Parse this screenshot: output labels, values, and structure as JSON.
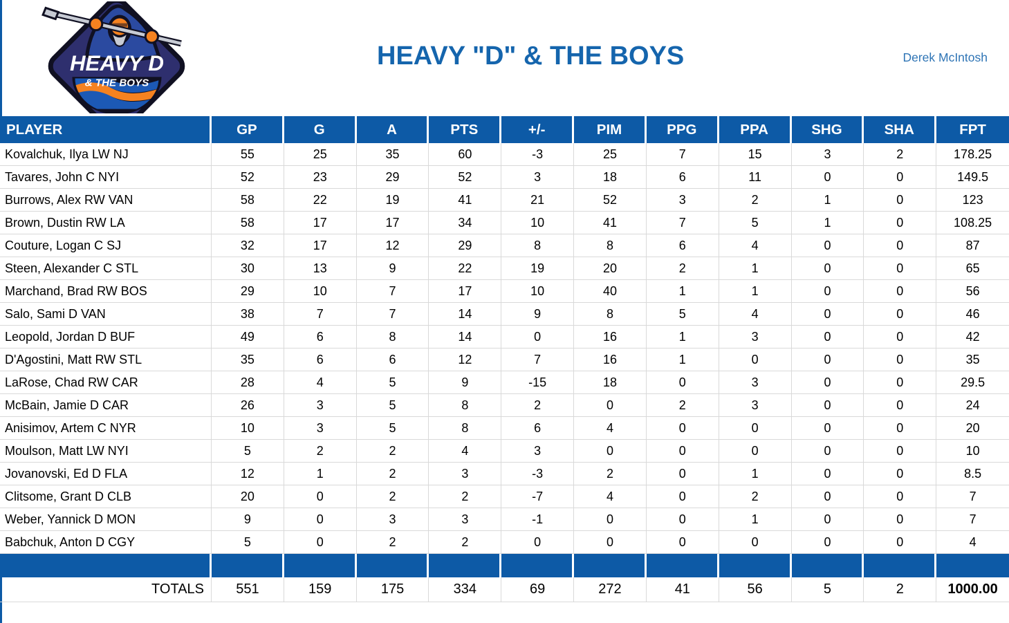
{
  "page": {
    "title": "HEAVY \"D\" & THE BOYS",
    "owner": "Derek McIntosh"
  },
  "logo": {
    "line1": "HEAVY D",
    "line2": "& THE BOYS"
  },
  "colors": {
    "header_blue": "#0d5aa6",
    "title_blue": "#1565ad",
    "owner_blue": "#2e74b5",
    "gridline": "#d9d9d9",
    "logo_navy": "#2e2f6e",
    "logo_outline": "#101022",
    "logo_robe_blue": "#2b4aa0",
    "logo_wave_blue": "#1c59b5",
    "logo_orange": "#f58220",
    "logo_gray": "#c7cbd4"
  },
  "table": {
    "columns": [
      "PLAYER",
      "GP",
      "G",
      "A",
      "PTS",
      "+/-",
      "PIM",
      "PPG",
      "PPA",
      "SHG",
      "SHA",
      "FPT"
    ],
    "rows": [
      [
        "Kovalchuk, Ilya LW NJ",
        "55",
        "25",
        "35",
        "60",
        "-3",
        "25",
        "7",
        "15",
        "3",
        "2",
        "178.25"
      ],
      [
        "Tavares, John C NYI",
        "52",
        "23",
        "29",
        "52",
        "3",
        "18",
        "6",
        "11",
        "0",
        "0",
        "149.5"
      ],
      [
        "Burrows, Alex RW VAN",
        "58",
        "22",
        "19",
        "41",
        "21",
        "52",
        "3",
        "2",
        "1",
        "0",
        "123"
      ],
      [
        "Brown, Dustin RW LA",
        "58",
        "17",
        "17",
        "34",
        "10",
        "41",
        "7",
        "5",
        "1",
        "0",
        "108.25"
      ],
      [
        "Couture, Logan C SJ",
        "32",
        "17",
        "12",
        "29",
        "8",
        "8",
        "6",
        "4",
        "0",
        "0",
        "87"
      ],
      [
        "Steen, Alexander C STL",
        "30",
        "13",
        "9",
        "22",
        "19",
        "20",
        "2",
        "1",
        "0",
        "0",
        "65"
      ],
      [
        "Marchand, Brad RW BOS",
        "29",
        "10",
        "7",
        "17",
        "10",
        "40",
        "1",
        "1",
        "0",
        "0",
        "56"
      ],
      [
        "Salo, Sami D VAN",
        "38",
        "7",
        "7",
        "14",
        "9",
        "8",
        "5",
        "4",
        "0",
        "0",
        "46"
      ],
      [
        "Leopold, Jordan D BUF",
        "49",
        "6",
        "8",
        "14",
        "0",
        "16",
        "1",
        "3",
        "0",
        "0",
        "42"
      ],
      [
        "D'Agostini, Matt RW STL",
        "35",
        "6",
        "6",
        "12",
        "7",
        "16",
        "1",
        "0",
        "0",
        "0",
        "35"
      ],
      [
        "LaRose, Chad RW CAR",
        "28",
        "4",
        "5",
        "9",
        "-15",
        "18",
        "0",
        "3",
        "0",
        "0",
        "29.5"
      ],
      [
        "McBain, Jamie D CAR",
        "26",
        "3",
        "5",
        "8",
        "2",
        "0",
        "2",
        "3",
        "0",
        "0",
        "24"
      ],
      [
        "Anisimov, Artem C NYR",
        "10",
        "3",
        "5",
        "8",
        "6",
        "4",
        "0",
        "0",
        "0",
        "0",
        "20"
      ],
      [
        "Moulson, Matt LW NYI",
        "5",
        "2",
        "2",
        "4",
        "3",
        "0",
        "0",
        "0",
        "0",
        "0",
        "10"
      ],
      [
        "Jovanovski, Ed D FLA",
        "12",
        "1",
        "2",
        "3",
        "-3",
        "2",
        "0",
        "1",
        "0",
        "0",
        "8.5"
      ],
      [
        "Clitsome, Grant D CLB",
        "20",
        "0",
        "2",
        "2",
        "-7",
        "4",
        "0",
        "2",
        "0",
        "0",
        "7"
      ],
      [
        "Weber, Yannick D MON",
        "9",
        "0",
        "3",
        "3",
        "-1",
        "0",
        "0",
        "1",
        "0",
        "0",
        "7"
      ],
      [
        "Babchuk, Anton D CGY",
        "5",
        "0",
        "2",
        "2",
        "0",
        "0",
        "0",
        "0",
        "0",
        "0",
        "4"
      ]
    ],
    "totals": [
      "TOTALS",
      "551",
      "159",
      "175",
      "334",
      "69",
      "272",
      "41",
      "56",
      "5",
      "2",
      "1000.00"
    ]
  }
}
